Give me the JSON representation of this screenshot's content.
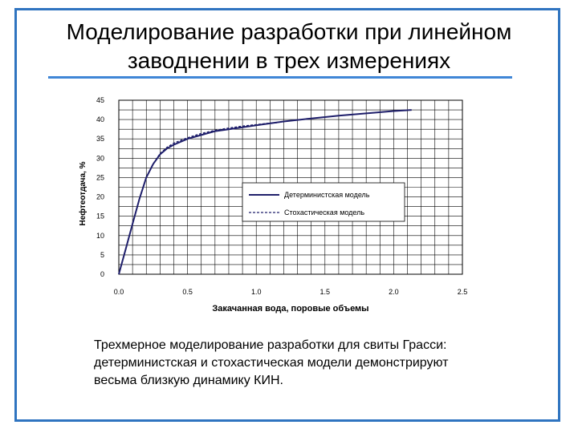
{
  "slide": {
    "title_line1": "Моделирование разработки при линейном",
    "title_line2": "заводнении в трех измерениях",
    "caption_line1": "Трехмерное моделирование разработки для свиты Грасси:",
    "caption_line2": "детерминистская и стохастическая модели демонстрируют",
    "caption_line3": "весьма близкую динамику КИН."
  },
  "colors": {
    "frame": "#2f74c0",
    "rule": "#3f86d6",
    "series": "#1f1f6b"
  },
  "chart_data": {
    "type": "line",
    "xlabel": "Закачанная вода, поровые объемы",
    "ylabel": "Нефтеотдача, %",
    "xlim": [
      0,
      2.5
    ],
    "ylim": [
      0,
      45
    ],
    "x_ticks": [
      "0.0",
      "0.5",
      "1.0",
      "1.5",
      "2.0",
      "2.5"
    ],
    "y_ticks": [
      "0",
      "5",
      "10",
      "15",
      "20",
      "25",
      "30",
      "35",
      "40",
      "45"
    ],
    "grid": true,
    "legend_position": "right-middle",
    "series": [
      {
        "name": "Детерминистская модель",
        "style": "solid",
        "x": [
          0.0,
          0.05,
          0.1,
          0.15,
          0.2,
          0.25,
          0.3,
          0.35,
          0.4,
          0.5,
          0.6,
          0.7,
          0.8,
          1.0,
          1.2,
          1.4,
          1.6,
          1.8,
          2.0,
          2.13
        ],
        "y": [
          0,
          6.5,
          13,
          19.5,
          25,
          28.5,
          31,
          32.5,
          33.5,
          35,
          36,
          37,
          37.5,
          38.5,
          39.5,
          40.3,
          41,
          41.6,
          42.2,
          42.5
        ]
      },
      {
        "name": "Стохастическая модель",
        "style": "dashed",
        "x": [
          0.0,
          0.05,
          0.1,
          0.15,
          0.2,
          0.25,
          0.3,
          0.35,
          0.4,
          0.5,
          0.6,
          0.7,
          0.8,
          0.9,
          1.0,
          1.1,
          1.15
        ],
        "y": [
          0,
          6.5,
          13,
          19.5,
          25,
          28.6,
          31.2,
          32.8,
          33.9,
          35.3,
          36.4,
          37.2,
          37.8,
          38.3,
          38.7,
          39.1,
          39.2
        ]
      }
    ]
  }
}
